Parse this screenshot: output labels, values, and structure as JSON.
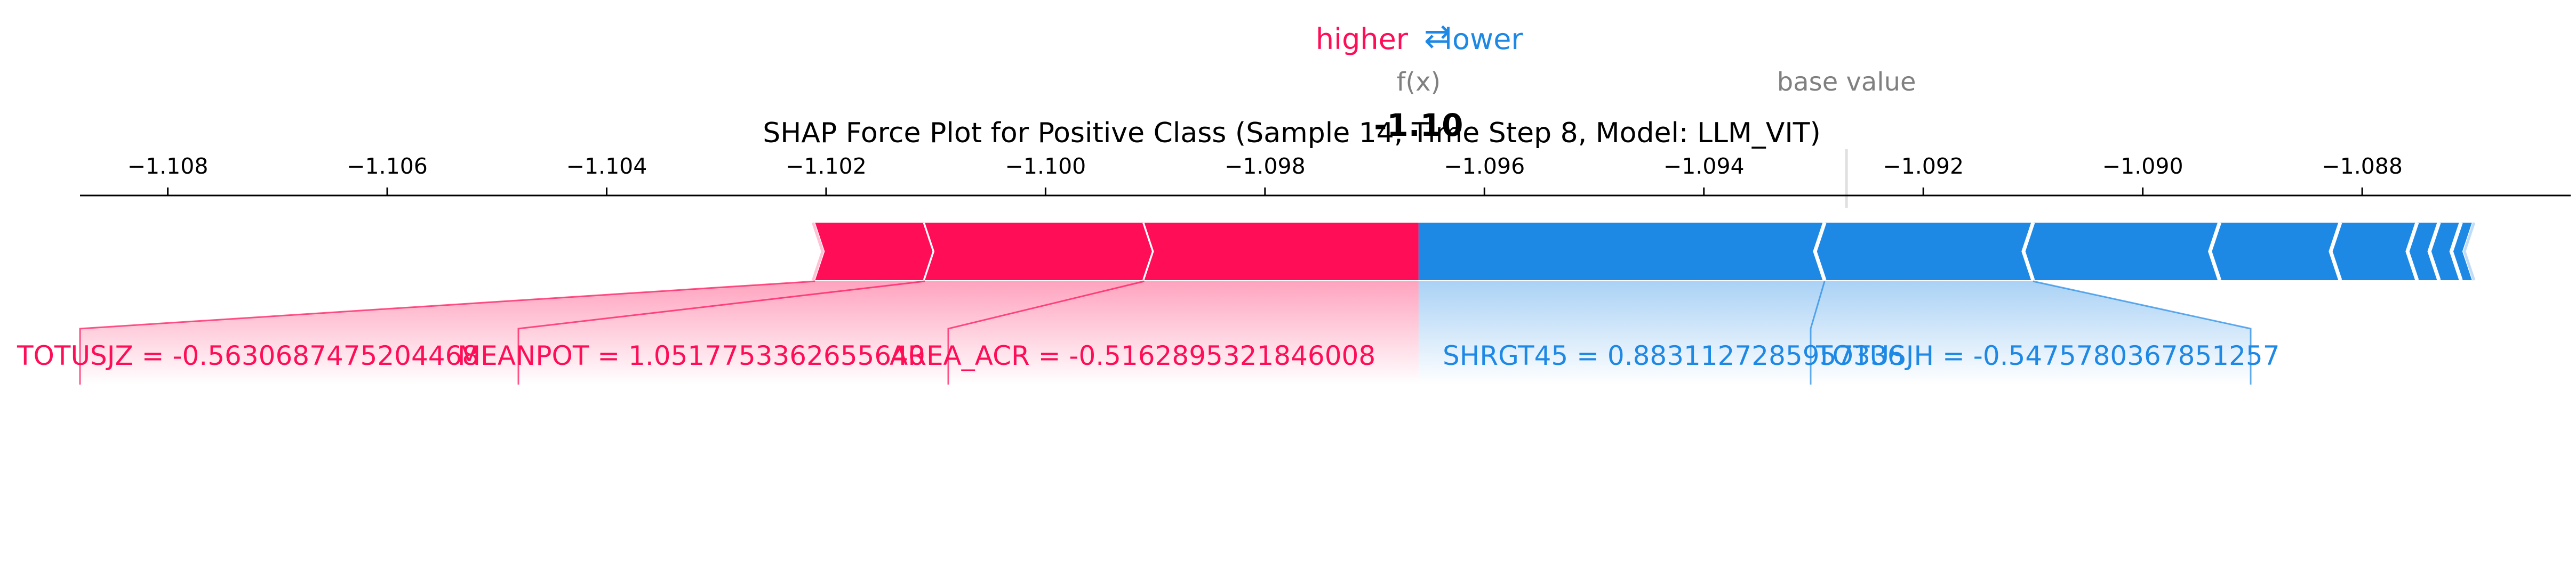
{
  "legend": {
    "higher_label": "higher",
    "arrows_glyph": "⇄",
    "lower_label": "lower",
    "colors": {
      "higher": "#ff0d57",
      "lower": "#1e88e5"
    }
  },
  "annotations": {
    "fx_label": "f(x)",
    "fx_value_label": "-1.10",
    "base_value_label": "base value"
  },
  "chart_data": {
    "type": "bar",
    "subtype": "shap-force",
    "title": "SHAP Force Plot for Positive Class (Sample 14, Time Step 8, Model: LLM_VIT)",
    "xlim": [
      -1.1088,
      -1.0861
    ],
    "ticks": [
      -1.108,
      -1.106,
      -1.104,
      -1.102,
      -1.1,
      -1.098,
      -1.096,
      -1.094,
      -1.092,
      -1.09,
      -1.088
    ],
    "tick_labels": [
      "−1.108",
      "−1.106",
      "−1.104",
      "−1.102",
      "−1.100",
      "−1.098",
      "−1.096",
      "−1.094",
      "−1.092",
      "−1.090",
      "−1.088"
    ],
    "fx": -1.0966,
    "base_value": -1.0927,
    "positive_features": [
      {
        "label": "TOTUSJZ = -0.5630687475204468",
        "start": -1.1021,
        "end": -1.1011
      },
      {
        "label": "MEANPOT = 1.0517753362655640",
        "start": -1.1011,
        "end": -1.0991
      },
      {
        "label": "AREA_ACR = -0.5162895321846008",
        "start": -1.0991,
        "end": -1.0966
      }
    ],
    "negative_features": [
      {
        "label": "SHRGT45 = 0.8831127285957336",
        "start": -1.0966,
        "end": -1.0929
      },
      {
        "label": "TOTUSJH = -0.5475780367851257",
        "start": -1.0929,
        "end": -1.091
      },
      {
        "label": "",
        "start": -1.091,
        "end": -1.0893
      },
      {
        "label": "",
        "start": -1.0893,
        "end": -1.0882
      },
      {
        "label": "",
        "start": -1.0882,
        "end": -1.0875
      },
      {
        "label": "",
        "start": -1.0875,
        "end": -1.0873
      },
      {
        "label": "",
        "start": -1.0873,
        "end": -1.0871
      },
      {
        "label": "",
        "start": -1.0871,
        "end": -1.087
      }
    ]
  }
}
